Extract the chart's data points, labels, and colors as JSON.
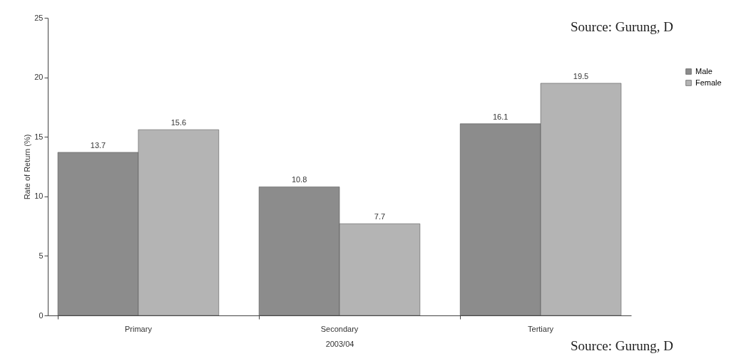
{
  "chart_data": {
    "type": "bar",
    "xlabel": "2003/04",
    "ylabel": "Rate of Return (%)",
    "categories": [
      "Primary",
      "Secondary",
      "Tertiary"
    ],
    "series": [
      {
        "name": "Male",
        "color": "#8c8c8c",
        "values": [
          13.7,
          10.8,
          16.1
        ]
      },
      {
        "name": "Female",
        "color": "#b4b4b4",
        "values": [
          15.6,
          7.7,
          19.5
        ]
      }
    ],
    "ylim": [
      0,
      25
    ],
    "yticks": [
      0,
      5,
      10,
      15,
      20,
      25
    ],
    "grid": false,
    "legend": "top right",
    "data_labels": true,
    "annotations": [
      "Source: Gurung, D",
      "Source: Gurung, D"
    ]
  }
}
